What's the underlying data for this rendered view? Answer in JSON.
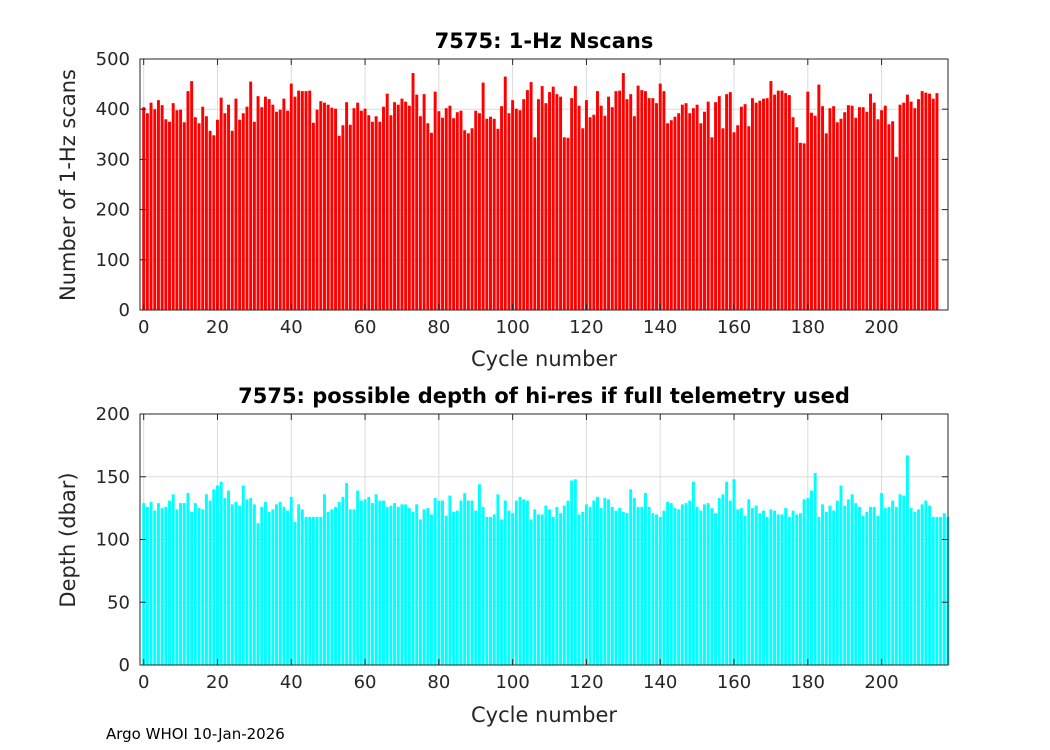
{
  "footer": "Argo WHOI 10-Jan-2026",
  "chart_data": [
    {
      "type": "bar",
      "title": "7575: 1-Hz Nscans",
      "xlabel": "Cycle number",
      "ylabel": "Number of 1-Hz scans",
      "xlim": [
        -1,
        218
      ],
      "ylim": [
        0,
        500
      ],
      "xticks": [
        0,
        20,
        40,
        60,
        80,
        100,
        120,
        140,
        160,
        180,
        200
      ],
      "yticks": [
        0,
        100,
        200,
        300,
        400,
        500
      ],
      "grid": true,
      "color": "#ff0000",
      "x_start": 0,
      "values": [
        404,
        392,
        413,
        400,
        418,
        408,
        380,
        375,
        412,
        398,
        399,
        374,
        436,
        456,
        384,
        372,
        405,
        386,
        357,
        348,
        379,
        423,
        392,
        409,
        357,
        421,
        379,
        392,
        405,
        455,
        375,
        426,
        404,
        425,
        420,
        409,
        395,
        399,
        421,
        397,
        451,
        425,
        437,
        436,
        436,
        437,
        373,
        399,
        416,
        413,
        409,
        403,
        401,
        347,
        368,
        414,
        369,
        402,
        413,
        397,
        401,
        388,
        375,
        386,
        375,
        405,
        431,
        388,
        414,
        409,
        421,
        415,
        407,
        472,
        429,
        386,
        430,
        372,
        353,
        435,
        396,
        383,
        402,
        407,
        382,
        394,
        397,
        358,
        352,
        362,
        397,
        392,
        453,
        381,
        385,
        381,
        361,
        406,
        465,
        392,
        418,
        401,
        398,
        420,
        438,
        454,
        344,
        420,
        446,
        412,
        434,
        445,
        430,
        425,
        344,
        343,
        422,
        446,
        407,
        362,
        418,
        384,
        389,
        436,
        407,
        387,
        425,
        404,
        436,
        437,
        472,
        420,
        430,
        386,
        447,
        438,
        436,
        422,
        422,
        412,
        451,
        436,
        372,
        378,
        385,
        392,
        409,
        412,
        392,
        402,
        409,
        372,
        395,
        415,
        344,
        414,
        426,
        362,
        430,
        434,
        354,
        368,
        405,
        410,
        366,
        422,
        413,
        417,
        421,
        422,
        456,
        429,
        437,
        437,
        432,
        428,
        384,
        364,
        333,
        332,
        435,
        393,
        387,
        449,
        406,
        352,
        402,
        406,
        374,
        381,
        394,
        408,
        407,
        383,
        404,
        404,
        395,
        431,
        413,
        380,
        398,
        407,
        370,
        376,
        305,
        409,
        413,
        429,
        415,
        402,
        420,
        436,
        433,
        431,
        421,
        432
      ]
    },
    {
      "type": "bar",
      "title": "7575: possible depth of hi-res if full telemetry used",
      "xlabel": "Cycle number",
      "ylabel": "Depth (dbar)",
      "xlim": [
        -1,
        218
      ],
      "ylim": [
        0,
        200
      ],
      "xticks": [
        0,
        20,
        40,
        60,
        80,
        100,
        120,
        140,
        160,
        180,
        200
      ],
      "yticks": [
        0,
        50,
        100,
        150,
        200
      ],
      "grid": true,
      "color": "#00ffff",
      "x_start": 0,
      "values": [
        129,
        126,
        130,
        123,
        129,
        125,
        126,
        131,
        136,
        124,
        129,
        129,
        137,
        122,
        129,
        125,
        124,
        136,
        131,
        140,
        143,
        146,
        133,
        139,
        128,
        130,
        127,
        143,
        132,
        133,
        128,
        113,
        126,
        130,
        122,
        124,
        128,
        130,
        126,
        123,
        134,
        114,
        128,
        124,
        118,
        118,
        118,
        118,
        118,
        136,
        122,
        124,
        126,
        130,
        134,
        145,
        124,
        124,
        139,
        131,
        132,
        134,
        129,
        136,
        131,
        131,
        126,
        127,
        129,
        126,
        128,
        128,
        125,
        122,
        128,
        116,
        124,
        125,
        120,
        133,
        131,
        131,
        119,
        135,
        122,
        123,
        131,
        137,
        131,
        131,
        123,
        144,
        126,
        118,
        118,
        120,
        136,
        116,
        131,
        123,
        121,
        131,
        134,
        132,
        131,
        116,
        124,
        120,
        120,
        127,
        124,
        118,
        126,
        121,
        127,
        131,
        147,
        148,
        120,
        122,
        128,
        126,
        131,
        134,
        125,
        133,
        132,
        126,
        123,
        125,
        122,
        121,
        140,
        133,
        126,
        126,
        137,
        126,
        121,
        120,
        118,
        123,
        130,
        129,
        125,
        124,
        128,
        129,
        131,
        146,
        126,
        123,
        128,
        129,
        125,
        121,
        133,
        136,
        146,
        131,
        148,
        124,
        125,
        119,
        132,
        125,
        127,
        121,
        123,
        118,
        124,
        123,
        120,
        120,
        125,
        118,
        123,
        120,
        121,
        132,
        133,
        139,
        153,
        118,
        128,
        122,
        127,
        123,
        131,
        143,
        127,
        132,
        136,
        129,
        126,
        119,
        122,
        126,
        126,
        119,
        137,
        125,
        126,
        131,
        126,
        136,
        135,
        167,
        125,
        122,
        124,
        128,
        131,
        127,
        118,
        118,
        118,
        121,
        118
      ]
    }
  ]
}
